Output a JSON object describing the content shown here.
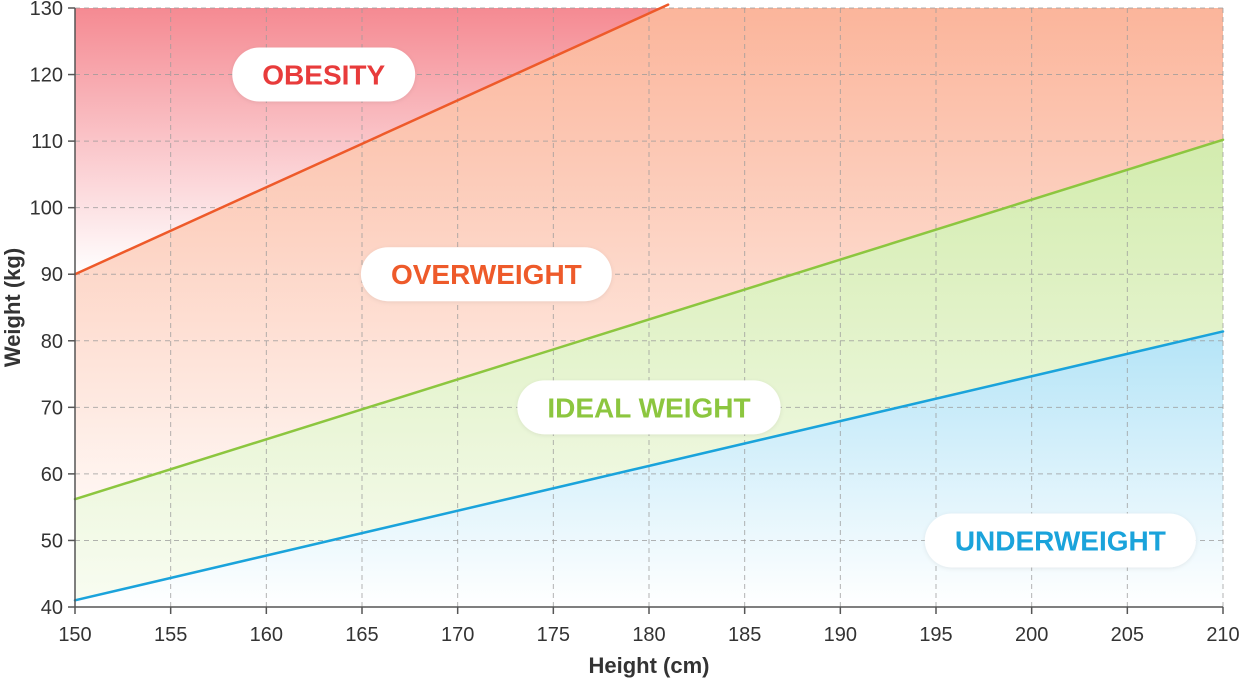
{
  "chart_data": {
    "type": "line",
    "title": "",
    "xlabel": "Height (cm)",
    "ylabel": "Weight (kg)",
    "xlim": [
      150,
      210
    ],
    "ylim": [
      40,
      130
    ],
    "x_ticks": [
      150,
      155,
      160,
      165,
      170,
      175,
      180,
      185,
      190,
      195,
      200,
      205,
      210
    ],
    "y_ticks": [
      40,
      50,
      60,
      70,
      80,
      90,
      100,
      110,
      120,
      130
    ],
    "grid": true,
    "colors": {
      "obesity": "#e83b3b",
      "overweight": "#ee5a2a",
      "ideal": "#8cc63f",
      "underweight": "#1aa3db"
    },
    "boundaries": [
      {
        "key": "overweight_obesity",
        "color": "#ee5a2a",
        "x": [
          150,
          181
        ],
        "y": [
          90,
          130.5
        ]
      },
      {
        "key": "ideal_overweight",
        "color": "#8cc63f",
        "x": [
          150,
          210
        ],
        "y": [
          56.2,
          110.2
        ]
      },
      {
        "key": "underweight_ideal",
        "color": "#1aa3db",
        "x": [
          150,
          210
        ],
        "y": [
          41,
          81.4
        ]
      }
    ],
    "zones": [
      {
        "key": "obesity",
        "label": "OBESITY",
        "color": "#e83b3b",
        "at": [
          163,
          120
        ]
      },
      {
        "key": "overweight",
        "label": "OVERWEIGHT",
        "color": "#ee5a2a",
        "at": [
          171.5,
          90
        ]
      },
      {
        "key": "ideal",
        "label": "IDEAL WEIGHT",
        "color": "#8cc63f",
        "at": [
          180,
          70
        ]
      },
      {
        "key": "underweight",
        "label": "UNDERWEIGHT",
        "color": "#1aa3db",
        "at": [
          201.5,
          50
        ]
      }
    ]
  }
}
